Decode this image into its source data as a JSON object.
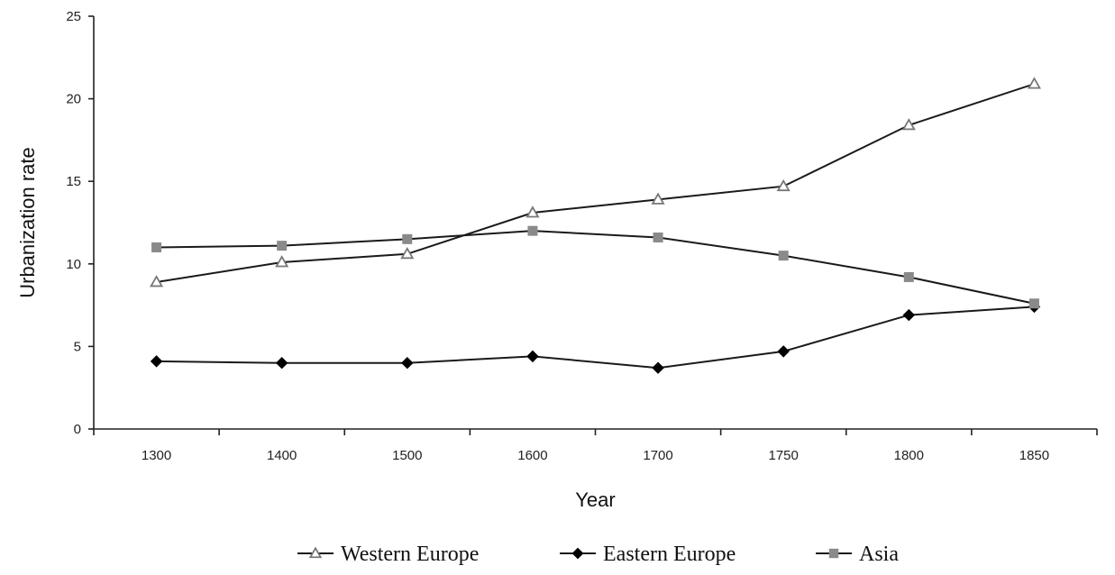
{
  "chart_data": {
    "type": "line",
    "title": "",
    "xlabel": "Year",
    "ylabel": "Urbanization rate",
    "categories": [
      "1300",
      "1400",
      "1500",
      "1600",
      "1700",
      "1750",
      "1800",
      "1850"
    ],
    "ylim": [
      0,
      25
    ],
    "yticks": [
      "0",
      "5",
      "10",
      "15",
      "20",
      "25"
    ],
    "grid": false,
    "legend_position": "bottom-center",
    "series": [
      {
        "name": "Western Europe",
        "marker": "triangle-open",
        "color": "#1a1a1a",
        "marker_color": "#777777",
        "values": [
          8.9,
          10.1,
          10.6,
          13.1,
          13.9,
          14.7,
          18.4,
          20.9
        ]
      },
      {
        "name": "Eastern Europe",
        "marker": "diamond-filled",
        "color": "#1a1a1a",
        "marker_color": "#000000",
        "values": [
          4.1,
          4.0,
          4.0,
          4.4,
          3.7,
          4.7,
          6.9,
          7.4
        ]
      },
      {
        "name": "Asia",
        "marker": "square-filled",
        "color": "#1a1a1a",
        "marker_color": "#8a8a8a",
        "values": [
          11.0,
          11.1,
          11.5,
          12.0,
          11.6,
          10.5,
          9.2,
          7.6
        ]
      }
    ]
  }
}
